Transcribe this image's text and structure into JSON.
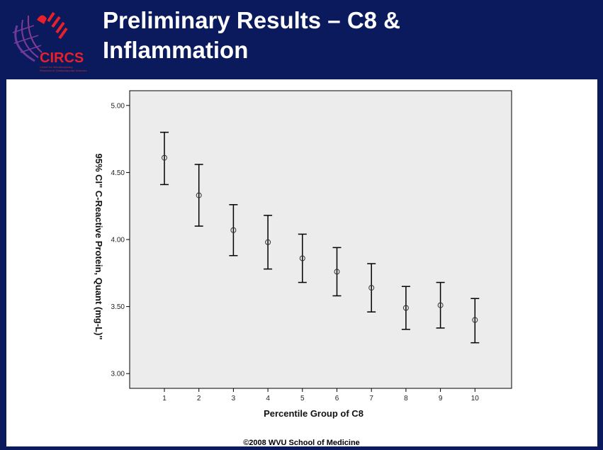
{
  "slide": {
    "title_line1": "Preliminary Results – C8 &",
    "title_line2": "Inflammation",
    "logo_text": "CIRCS",
    "logo_subtext": [
      "Center for Interdisciplinary",
      "Research in Cardiovascular Sciences"
    ],
    "footer": "©2008 WVU School of Medicine",
    "colors": {
      "background": "#0a1a5c",
      "logo_red": "#e8202a",
      "plot_bg": "#ececec"
    }
  },
  "chart_data": {
    "type": "errorbar",
    "title": "",
    "xlabel": "Percentile Group of C8",
    "ylabel": "95% CI\" C-Reactive Protein, Quant (mg-L)\"",
    "categories": [
      "1",
      "2",
      "3",
      "4",
      "5",
      "6",
      "7",
      "8",
      "9",
      "10"
    ],
    "mean": [
      4.61,
      4.33,
      4.07,
      3.98,
      3.86,
      3.76,
      3.64,
      3.49,
      3.51,
      3.4
    ],
    "upper": [
      4.8,
      4.56,
      4.26,
      4.18,
      4.04,
      3.94,
      3.82,
      3.65,
      3.68,
      3.56
    ],
    "lower": [
      4.41,
      4.1,
      3.88,
      3.78,
      3.68,
      3.58,
      3.46,
      3.33,
      3.34,
      3.23
    ],
    "yticks": [
      "3.00",
      "3.50",
      "4.00",
      "4.50",
      "5.00"
    ],
    "ylim": [
      2.89,
      5.11
    ],
    "grid": false
  }
}
